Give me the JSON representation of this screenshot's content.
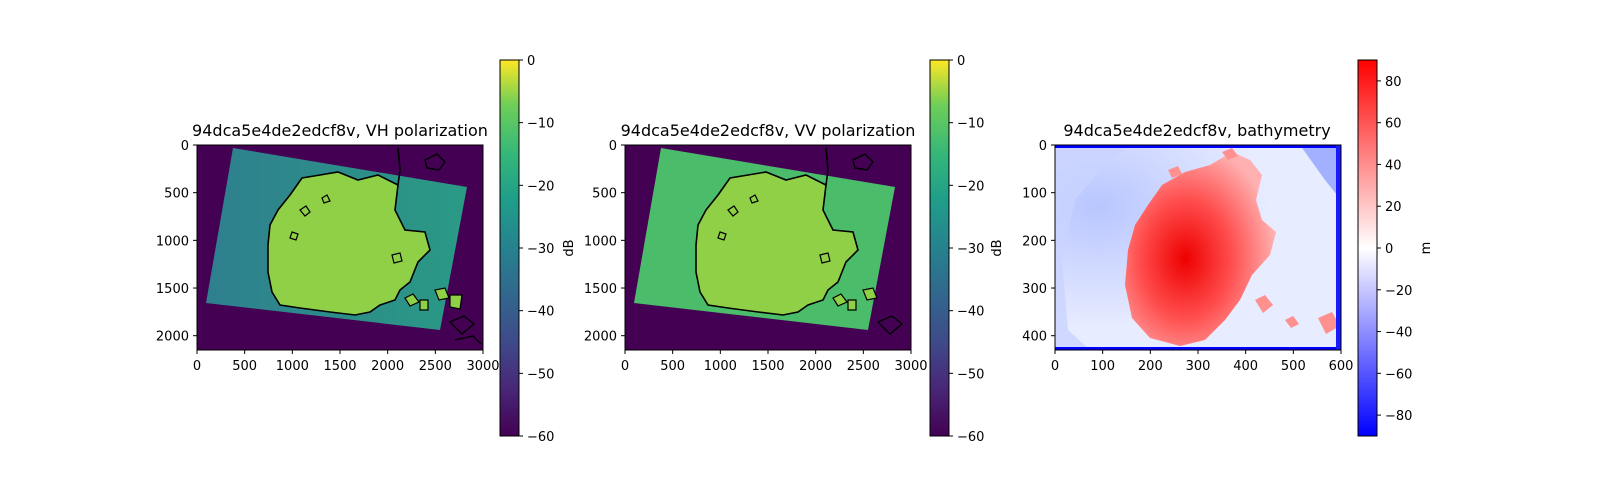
{
  "chart_data": [
    {
      "type": "heatmap",
      "title": "94dca5e4de2edcf8v, VH polarization",
      "x_ticks": [
        0,
        500,
        1000,
        1500,
        2000,
        2500,
        3000
      ],
      "y_ticks": [
        0,
        500,
        1000,
        1500,
        2000
      ],
      "xlim": [
        0,
        3000
      ],
      "ylim": [
        2150,
        0
      ],
      "grid": false,
      "colorbar": {
        "label": "dB",
        "colormap": "viridis",
        "range": [
          -60,
          0
        ],
        "ticks": [
          0,
          -10,
          -20,
          -30,
          -40,
          -50,
          -60
        ],
        "tick_labels": [
          "0",
          "−10",
          "−20",
          "−30",
          "−40",
          "−50",
          "−60"
        ]
      },
      "colors": {
        "background": "#440154",
        "land": "#8fd046",
        "sea": "#2a9a85",
        "coastline": "#000000"
      }
    },
    {
      "type": "heatmap",
      "title": "94dca5e4de2edcf8v, VV polarization",
      "x_ticks": [
        0,
        500,
        1000,
        1500,
        2000,
        2500,
        3000
      ],
      "y_ticks": [
        0,
        500,
        1000,
        1500,
        2000
      ],
      "xlim": [
        0,
        3000
      ],
      "ylim": [
        2150,
        0
      ],
      "grid": false,
      "colorbar": {
        "label": "dB",
        "colormap": "viridis",
        "range": [
          -60,
          0
        ],
        "ticks": [
          0,
          -10,
          -20,
          -30,
          -40,
          -50,
          -60
        ],
        "tick_labels": [
          "0",
          "−10",
          "−20",
          "−30",
          "−40",
          "−50",
          "−60"
        ]
      },
      "colors": {
        "background": "#440154",
        "land": "#8fd046",
        "sea": "#4bbd6a",
        "coastline": "#000000"
      }
    },
    {
      "type": "heatmap",
      "title": "94dca5e4de2edcf8v, bathymetry",
      "x_ticks": [
        0,
        100,
        200,
        300,
        400,
        500,
        600
      ],
      "y_ticks": [
        0,
        100,
        200,
        300,
        400
      ],
      "xlim": [
        0,
        600
      ],
      "ylim": [
        430,
        0
      ],
      "grid": false,
      "colorbar": {
        "label": "m",
        "colormap": "bwr",
        "range": [
          -90,
          90
        ],
        "ticks": [
          80,
          60,
          40,
          20,
          0,
          -20,
          -40,
          -60,
          -80
        ],
        "tick_labels": [
          "80",
          "60",
          "40",
          "20",
          "0",
          "−20",
          "−40",
          "−60",
          "−80"
        ]
      },
      "colors": {
        "deep": "#0000ff",
        "zero": "#ffffff",
        "high": "#ff0000"
      }
    }
  ]
}
